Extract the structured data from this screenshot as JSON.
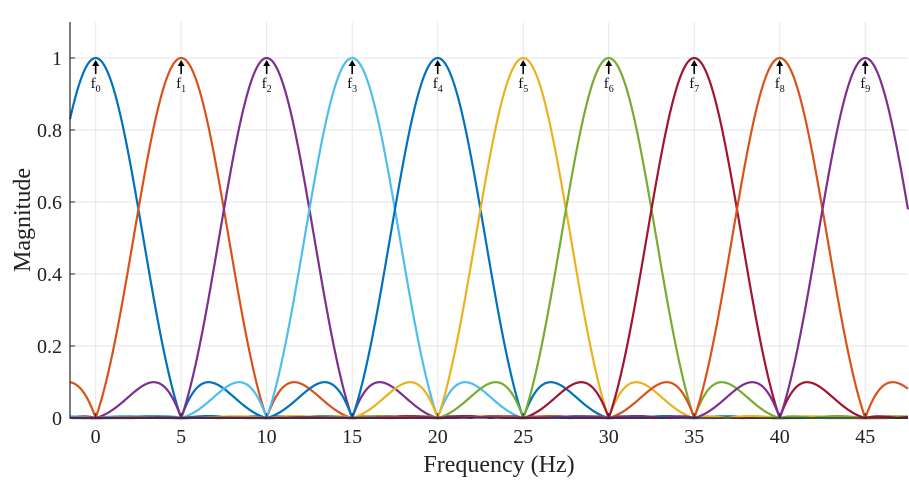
{
  "chart_data": {
    "type": "line",
    "title": "",
    "xlabel": "Frequency (Hz)",
    "ylabel": "Magnitude",
    "xlim": [
      -1.5,
      47.5
    ],
    "ylim": [
      0,
      1.1
    ],
    "xticks": [
      0,
      5,
      10,
      15,
      20,
      25,
      30,
      35,
      40,
      45
    ],
    "yticks": [
      0,
      0.2,
      0.4,
      0.6,
      0.8,
      1
    ],
    "xtick_labels": [
      "0",
      "5",
      "10",
      "15",
      "20",
      "25",
      "30",
      "35",
      "40",
      "45"
    ],
    "ytick_labels": [
      "0",
      "0.2",
      "0.4",
      "0.6",
      "0.8",
      "1"
    ],
    "grid": true,
    "legend": "none",
    "series": [
      {
        "center": 0,
        "color": "#0072BD"
      },
      {
        "center": 5,
        "color": "#D95319"
      },
      {
        "center": 10,
        "color": "#7E2F8E"
      },
      {
        "center": 15,
        "color": "#4DBEEE"
      },
      {
        "center": 20,
        "color": "#0072BD"
      },
      {
        "center": 25,
        "color": "#EDB120"
      },
      {
        "center": 30,
        "color": "#77AC30"
      },
      {
        "center": 35,
        "color": "#A2142F"
      },
      {
        "center": 40,
        "color": "#D95319"
      },
      {
        "center": 45,
        "color": "#7E2F8E"
      }
    ],
    "annotations": [
      {
        "label": "f",
        "sub": "0",
        "x": 0
      },
      {
        "label": "f",
        "sub": "1",
        "x": 5
      },
      {
        "label": "f",
        "sub": "2",
        "x": 10
      },
      {
        "label": "f",
        "sub": "3",
        "x": 15
      },
      {
        "label": "f",
        "sub": "4",
        "x": 20
      },
      {
        "label": "f",
        "sub": "5",
        "x": 25
      },
      {
        "label": "f",
        "sub": "6",
        "x": 30
      },
      {
        "label": "f",
        "sub": "7",
        "x": 35
      },
      {
        "label": "f",
        "sub": "8",
        "x": 40
      },
      {
        "label": "f",
        "sub": "9",
        "x": 45
      }
    ]
  }
}
